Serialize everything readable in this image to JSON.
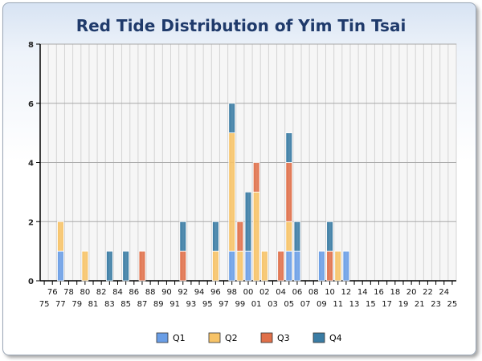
{
  "chart_data": {
    "type": "bar",
    "stacked": true,
    "title": "Red Tide Distribution of Yim Tin Tsai",
    "xlabel": "",
    "ylabel": "",
    "ylim": [
      0,
      8
    ],
    "yticks": [
      "0",
      "2",
      "4",
      "6",
      "8"
    ],
    "grid": true,
    "legend_position": "bottom",
    "categories": [
      "75",
      "76",
      "77",
      "78",
      "79",
      "80",
      "81",
      "82",
      "83",
      "84",
      "85",
      "86",
      "87",
      "88",
      "89",
      "90",
      "91",
      "92",
      "93",
      "94",
      "95",
      "96",
      "97",
      "98",
      "99",
      "00",
      "01",
      "02",
      "03",
      "04",
      "05",
      "06",
      "07",
      "08",
      "09",
      "10",
      "11",
      "12",
      "13",
      "14",
      "15",
      "16",
      "17",
      "18",
      "19",
      "20",
      "21",
      "22",
      "23",
      "24",
      "25"
    ],
    "series": [
      {
        "name": "Q1",
        "color": "#6a9ee6",
        "values": [
          0,
          0,
          1,
          0,
          0,
          0,
          0,
          0,
          0,
          0,
          0,
          0,
          0,
          0,
          0,
          0,
          0,
          0,
          0,
          0,
          0,
          0,
          0,
          1,
          0,
          1,
          0,
          0,
          0,
          0,
          1,
          1,
          0,
          0,
          1,
          0,
          0,
          1,
          0,
          0,
          0,
          0,
          0,
          0,
          0,
          0,
          0,
          0,
          0,
          0,
          0
        ]
      },
      {
        "name": "Q2",
        "color": "#f7c367",
        "values": [
          0,
          0,
          1,
          0,
          0,
          1,
          0,
          0,
          0,
          0,
          0,
          0,
          0,
          0,
          0,
          0,
          0,
          0,
          0,
          0,
          0,
          1,
          0,
          4,
          1,
          0,
          3,
          1,
          0,
          0,
          1,
          0,
          0,
          0,
          0,
          0,
          1,
          0,
          0,
          0,
          0,
          0,
          0,
          0,
          0,
          0,
          0,
          0,
          0,
          0,
          0
        ]
      },
      {
        "name": "Q3",
        "color": "#e0704a",
        "values": [
          0,
          0,
          0,
          0,
          0,
          0,
          0,
          0,
          0,
          0,
          0,
          0,
          1,
          0,
          0,
          0,
          0,
          1,
          0,
          0,
          0,
          0,
          0,
          0,
          1,
          0,
          1,
          0,
          0,
          1,
          2,
          0,
          0,
          0,
          0,
          1,
          0,
          0,
          0,
          0,
          0,
          0,
          0,
          0,
          0,
          0,
          0,
          0,
          0,
          0,
          0
        ]
      },
      {
        "name": "Q4",
        "color": "#3a7ca4",
        "values": [
          0,
          0,
          0,
          0,
          0,
          0,
          0,
          0,
          1,
          0,
          1,
          0,
          0,
          0,
          0,
          0,
          0,
          1,
          0,
          0,
          0,
          1,
          0,
          1,
          0,
          2,
          0,
          0,
          0,
          0,
          1,
          1,
          0,
          0,
          0,
          1,
          0,
          0,
          0,
          0,
          0,
          0,
          0,
          0,
          0,
          0,
          0,
          0,
          0,
          0,
          0
        ]
      }
    ]
  }
}
